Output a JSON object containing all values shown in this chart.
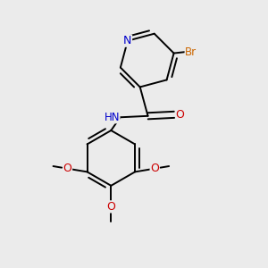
{
  "background_color": "#ebebeb",
  "figsize": [
    3.0,
    3.0
  ],
  "dpi": 100,
  "atom_colors": {
    "N": "#0000cc",
    "O": "#cc0000",
    "Br": "#cc6600",
    "C": "#000000",
    "H": "#000000"
  },
  "bond_color": "#000000",
  "bond_width": 1.4,
  "font_size_atoms": 8.5
}
